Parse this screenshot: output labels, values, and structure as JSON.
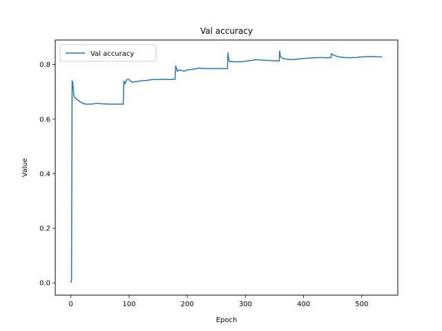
{
  "chart_data": {
    "type": "line",
    "title": "Val accuracy",
    "xlabel": "Epoch",
    "ylabel": "Value",
    "xlim": [
      -27,
      562
    ],
    "ylim": [
      -0.045,
      0.89
    ],
    "xticks": [
      0,
      100,
      200,
      300,
      400,
      500
    ],
    "yticks": [
      0.0,
      0.2,
      0.4,
      0.6,
      0.8
    ],
    "xtick_labels": [
      "0",
      "100",
      "200",
      "300",
      "400",
      "500"
    ],
    "ytick_labels": [
      "0.0",
      "0.2",
      "0.4",
      "0.6",
      "0.8"
    ],
    "grid": false,
    "legend": "upper left",
    "series": [
      {
        "name": "Val accuracy",
        "color": "#1f77b4",
        "x": [
          0,
          1,
          2,
          3,
          5,
          8,
          12,
          18,
          25,
          35,
          45,
          55,
          65,
          75,
          85,
          90,
          91,
          93,
          96,
          100,
          105,
          110,
          120,
          130,
          140,
          150,
          160,
          170,
          179,
          180,
          181,
          183,
          186,
          190,
          195,
          200,
          210,
          220,
          230,
          240,
          250,
          260,
          269,
          270,
          271,
          273,
          276,
          280,
          290,
          300,
          310,
          320,
          330,
          340,
          350,
          358,
          359,
          360,
          362,
          365,
          370,
          380,
          390,
          400,
          410,
          420,
          430,
          440,
          447,
          448,
          450,
          455,
          460,
          470,
          480,
          490,
          500,
          510,
          520,
          530,
          535
        ],
        "values": [
          0.0,
          0.01,
          0.74,
          0.735,
          0.685,
          0.675,
          0.67,
          0.66,
          0.655,
          0.655,
          0.658,
          0.656,
          0.655,
          0.655,
          0.655,
          0.655,
          0.74,
          0.73,
          0.745,
          0.745,
          0.735,
          0.737,
          0.74,
          0.742,
          0.745,
          0.745,
          0.746,
          0.745,
          0.746,
          0.795,
          0.79,
          0.775,
          0.78,
          0.778,
          0.776,
          0.78,
          0.783,
          0.787,
          0.785,
          0.785,
          0.785,
          0.785,
          0.785,
          0.843,
          0.82,
          0.81,
          0.812,
          0.81,
          0.81,
          0.812,
          0.815,
          0.818,
          0.816,
          0.815,
          0.814,
          0.813,
          0.85,
          0.83,
          0.826,
          0.822,
          0.82,
          0.818,
          0.82,
          0.822,
          0.824,
          0.825,
          0.826,
          0.825,
          0.826,
          0.84,
          0.836,
          0.832,
          0.828,
          0.826,
          0.825,
          0.826,
          0.828,
          0.829,
          0.829,
          0.828,
          0.828
        ]
      }
    ]
  }
}
